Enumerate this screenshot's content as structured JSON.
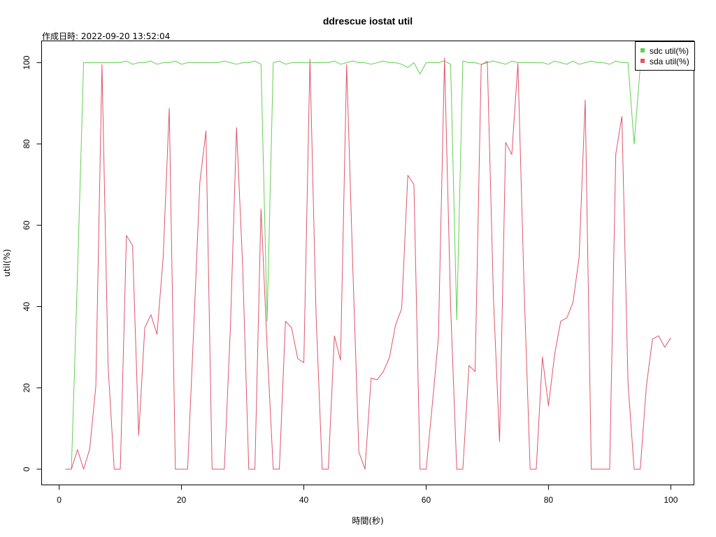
{
  "chart_data": {
    "type": "line",
    "title": "ddrescue iostat util",
    "subtitle": "作成日時: 2022-09-20 13:52:04",
    "xlabel": "時間(秒)",
    "ylabel": "util(%)",
    "xlim": [
      1,
      100
    ],
    "ylim": [
      0,
      101.2
    ],
    "xticks": [
      0,
      20,
      40,
      60,
      80,
      100
    ],
    "yticks": [
      0,
      20,
      40,
      60,
      80,
      100
    ],
    "grid": false,
    "legend_position": "top-right",
    "series": [
      {
        "name": "sdc util(%)",
        "color": "#61d04f",
        "x": [
          1,
          2,
          3,
          4,
          5,
          6,
          7,
          8,
          9,
          10,
          11,
          12,
          13,
          14,
          15,
          16,
          17,
          18,
          19,
          20,
          21,
          22,
          23,
          24,
          25,
          26,
          27,
          28,
          29,
          30,
          31,
          32,
          33,
          34,
          35,
          36,
          37,
          38,
          39,
          40,
          41,
          42,
          43,
          44,
          45,
          46,
          47,
          48,
          49,
          50,
          51,
          52,
          53,
          54,
          55,
          56,
          57,
          58,
          59,
          60,
          61,
          62,
          63,
          64,
          65,
          66,
          67,
          68,
          69,
          70,
          71,
          72,
          73,
          74,
          75,
          76,
          77,
          78,
          79,
          80,
          81,
          82,
          83,
          84,
          85,
          86,
          87,
          88,
          89,
          90,
          91,
          92,
          93,
          94,
          95
        ],
        "values": [
          0,
          0,
          48,
          100,
          100,
          100,
          100,
          100,
          100,
          100,
          100.4,
          99.6,
          100,
          100,
          100.4,
          99.6,
          100,
          100,
          100.4,
          99.6,
          100,
          100,
          100,
          100,
          100,
          100,
          100.4,
          100,
          99.6,
          100,
          100,
          100.4,
          99.6,
          36.4,
          100,
          100.4,
          99.6,
          100,
          100,
          100,
          100,
          100,
          100,
          100,
          100.4,
          99.6,
          100,
          100.4,
          100,
          100,
          99.6,
          100,
          100.4,
          100,
          100,
          99.6,
          98.8,
          100,
          97.2,
          100,
          100,
          100,
          100.4,
          99.6,
          36.7,
          100.4,
          100,
          100,
          99.6,
          100,
          100.4,
          100,
          99.6,
          100.4,
          100,
          100,
          100,
          100,
          100,
          99.6,
          100.4,
          100,
          99.6,
          100.4,
          99.6,
          100,
          100.4,
          100,
          100,
          99.6,
          100.4,
          100,
          100,
          80,
          99
        ]
      },
      {
        "name": "sda util(%)",
        "color": "#df536b",
        "x": [
          1,
          2,
          3,
          4,
          5,
          6,
          7,
          8,
          9,
          10,
          11,
          12,
          13,
          14,
          15,
          16,
          17,
          18,
          19,
          20,
          21,
          22,
          23,
          24,
          25,
          26,
          27,
          28,
          29,
          30,
          31,
          32,
          33,
          34,
          35,
          36,
          37,
          38,
          39,
          40,
          41,
          42,
          43,
          44,
          45,
          46,
          47,
          48,
          49,
          50,
          51,
          52,
          53,
          54,
          55,
          56,
          57,
          58,
          59,
          60,
          61,
          62,
          63,
          64,
          65,
          66,
          67,
          68,
          69,
          70,
          71,
          72,
          73,
          74,
          75,
          76,
          77,
          78,
          79,
          80,
          81,
          82,
          83,
          84,
          85,
          86,
          87,
          88,
          89,
          90,
          91,
          92,
          93,
          94,
          95,
          96,
          97,
          98,
          99,
          100
        ],
        "values": [
          0,
          0,
          4.8,
          0,
          5,
          20.5,
          99.5,
          25.5,
          0,
          0,
          57.5,
          55,
          8.3,
          34.8,
          38,
          33.2,
          52,
          88.8,
          0,
          0,
          0,
          34.5,
          70.5,
          83.2,
          0,
          0,
          0,
          35,
          84,
          50,
          0,
          0,
          64,
          30,
          0,
          0,
          36.4,
          34.8,
          27.2,
          26.2,
          100.8,
          38,
          0,
          0,
          32.8,
          26.8,
          99.5,
          50,
          4.2,
          0,
          22.4,
          22,
          24,
          27.5,
          35.5,
          39.5,
          72.3,
          70,
          0,
          0,
          15.8,
          32.3,
          101.1,
          40,
          0,
          0,
          25.5,
          24,
          99.5,
          100.3,
          42,
          6.8,
          80.4,
          77.4,
          99.8,
          45,
          0,
          0,
          27.6,
          15.6,
          28.2,
          36.4,
          37.2,
          41,
          52,
          90.8,
          0,
          0,
          0,
          0,
          77.5,
          86.8,
          21.3,
          0,
          0,
          20.4,
          32,
          32.8,
          30,
          32.3
        ]
      }
    ]
  }
}
